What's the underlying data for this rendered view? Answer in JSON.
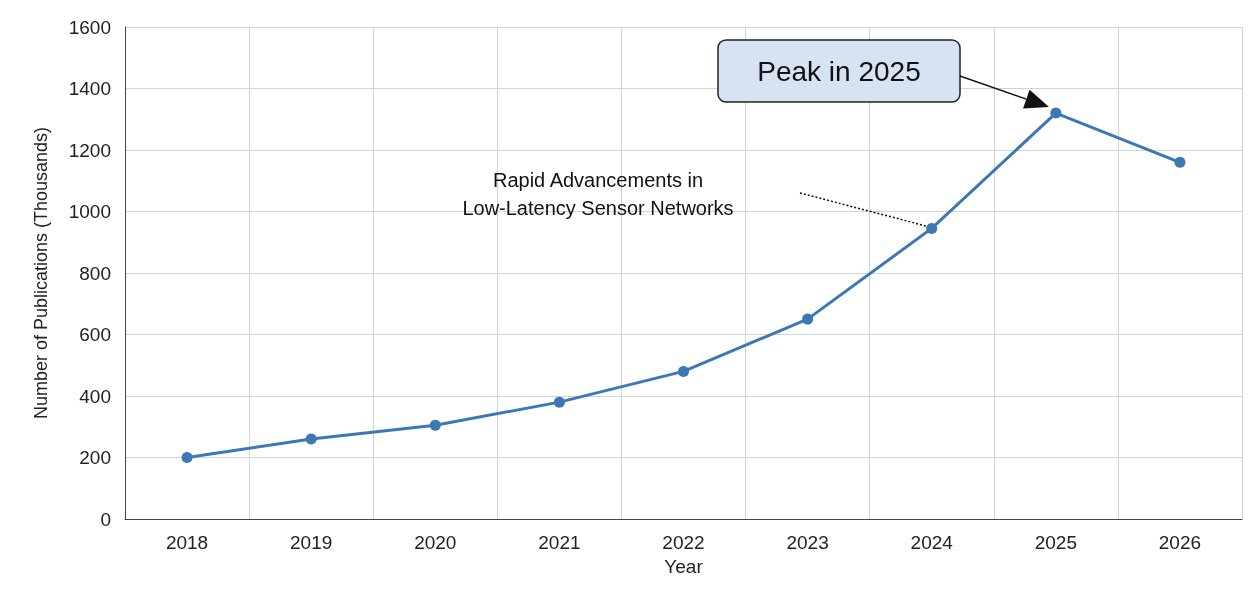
{
  "chart_data": {
    "type": "line",
    "xlabel": "Year",
    "ylabel": "Number of Publications (Thousands)",
    "categories": [
      "2018",
      "2019",
      "2020",
      "2021",
      "2022",
      "2023",
      "2024",
      "2025",
      "2026"
    ],
    "series": [
      {
        "color": "#3b78b4",
        "values": [
          200,
          260,
          305,
          380,
          480,
          650,
          945,
          1320,
          1160
        ]
      }
    ],
    "ylim": [
      0,
      1600
    ],
    "yticks": [
      0,
      200,
      400,
      600,
      800,
      1000,
      1200,
      1400,
      1600
    ],
    "grid": true,
    "marker": "circle",
    "line_style": "solid",
    "annotations": [
      "Peak in 2025",
      "Rapid Advancements in\nLow-Latency Sensor Networks"
    ]
  }
}
